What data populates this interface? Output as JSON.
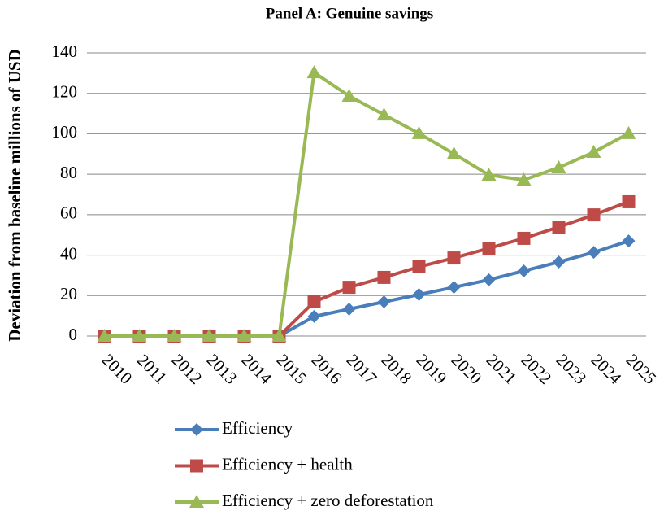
{
  "chart_data": {
    "type": "line",
    "title": "Panel A: Genuine savings",
    "y_label": "Deviation from baseline millions of USD",
    "categories": [
      "2010",
      "2011",
      "2012",
      "2013",
      "2014",
      "2015",
      "2016",
      "2017",
      "2018",
      "2019",
      "2020",
      "2021",
      "2022",
      "2023",
      "2024",
      "2025"
    ],
    "series": [
      {
        "name": "Efficiency",
        "color": "#4a7ebb",
        "marker": "diamond",
        "values": [
          0,
          0,
          0,
          0,
          0,
          0,
          9.7,
          13.3,
          16.9,
          20.5,
          24.1,
          27.8,
          32.2,
          36.6,
          41.4,
          47
        ]
      },
      {
        "name": "Efficiency + health",
        "color": "#be4b48",
        "marker": "square",
        "values": [
          0,
          0,
          0,
          0,
          0,
          0,
          16.9,
          24.1,
          29,
          34.2,
          38.6,
          43.4,
          48.3,
          53.9,
          59.9,
          66.4
        ]
      },
      {
        "name": "Efficiency + zero deforestation",
        "color": "#98b954",
        "marker": "triangle",
        "values": [
          0,
          0,
          0,
          0,
          0,
          0,
          130.3,
          118.7,
          109.4,
          100.2,
          90.1,
          79.6,
          77.2,
          83.3,
          90.9,
          100.2
        ]
      }
    ],
    "ylim": [
      0,
      140
    ],
    "yticks": [
      0,
      20,
      40,
      60,
      80,
      100,
      120,
      140
    ],
    "grid": true,
    "legend": "bottom"
  }
}
